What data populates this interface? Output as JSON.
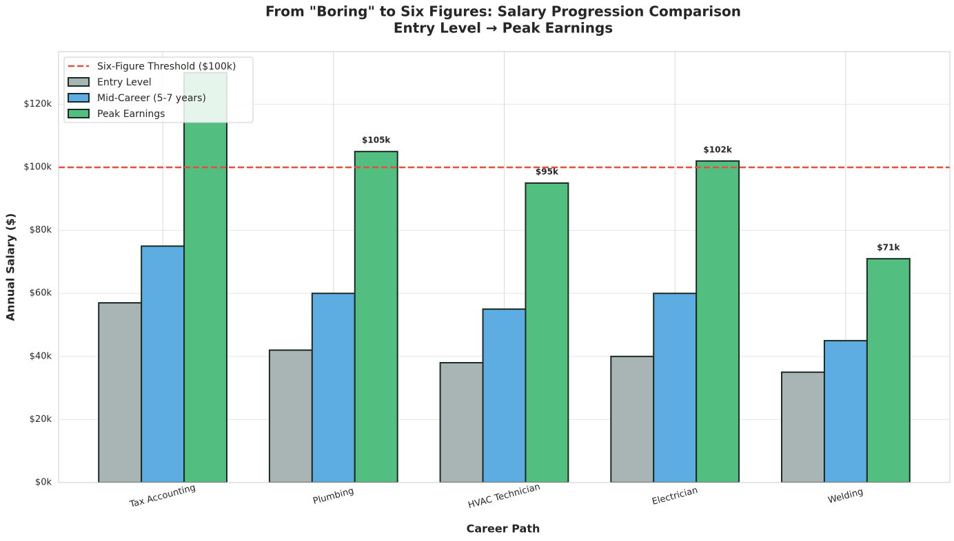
{
  "chart_data": {
    "type": "bar",
    "title": "From \"Boring\" to Six Figures: Salary Progression Comparison",
    "subtitle": "Entry Level → Peak Earnings",
    "x_label": "Career Path",
    "y_label": "Annual Salary ($)",
    "categories": [
      "Tax Accounting",
      "Plumbing",
      "HVAC Technician",
      "Electrician",
      "Welding"
    ],
    "series": [
      {
        "name": "Entry Level",
        "color": "#a9b5b5",
        "values": [
          57000,
          42000,
          38000,
          40000,
          35000
        ]
      },
      {
        "name": "Mid-Career (5-7 years)",
        "color": "#5dade2",
        "values": [
          75000,
          60000,
          55000,
          60000,
          45000
        ]
      },
      {
        "name": "Peak Earnings",
        "color": "#52be80",
        "values": [
          130000,
          105000,
          95000,
          102000,
          71000
        ],
        "value_labels": [
          null,
          "$105k",
          "$95k",
          "$102k",
          "$71k"
        ]
      }
    ],
    "threshold": {
      "name": "Six-Figure Threshold ($100k)",
      "value": 100000,
      "color": "#e74c3c"
    },
    "ylim": [
      0,
      136700
    ],
    "yticks": [
      {
        "value": 0,
        "label": "$0k"
      },
      {
        "value": 20000,
        "label": "$20k"
      },
      {
        "value": 40000,
        "label": "$40k"
      },
      {
        "value": 60000,
        "label": "$60k"
      },
      {
        "value": 80000,
        "label": "$80k"
      },
      {
        "value": 100000,
        "label": "$100k"
      },
      {
        "value": 120000,
        "label": "$120k"
      }
    ],
    "grid": true,
    "legend": "upper left"
  }
}
